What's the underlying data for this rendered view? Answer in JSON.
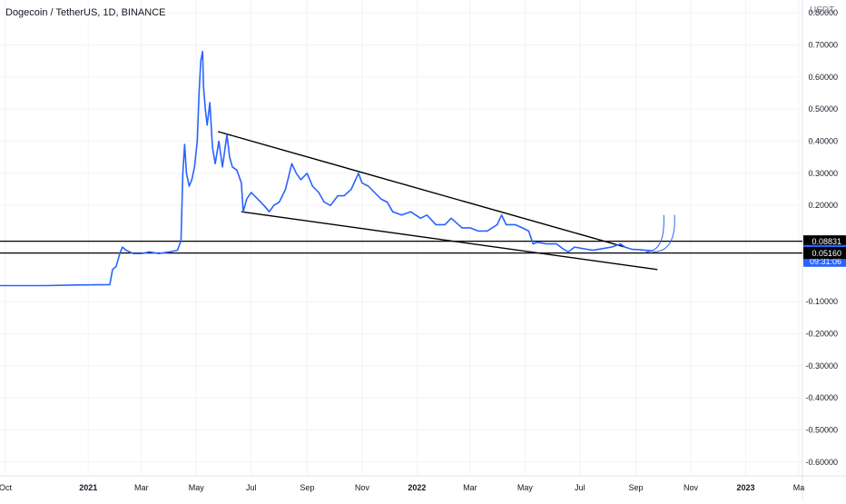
{
  "header": {
    "title": "Dogecoin / TetherUS, 1D, BINANCE",
    "currency": "USDT"
  },
  "colors": {
    "series": "#2962ff",
    "trendline": "#000000",
    "grid": "#f0f3fa",
    "axis_text": "#131722",
    "last_price_bg": "#2962ff"
  },
  "chart_data": {
    "type": "line",
    "symbol": "DOGEUSDT",
    "interval": "1D",
    "y_axis": {
      "ylim": [
        -0.64,
        0.84
      ],
      "ticks": [
        0.8,
        0.7,
        0.6,
        0.5,
        0.4,
        0.3,
        0.2,
        -0.1,
        -0.2,
        -0.3,
        -0.4,
        -0.5,
        -0.6
      ],
      "tick_labels": [
        "0.80000",
        "0.70000",
        "0.60000",
        "0.50000",
        "0.40000",
        "0.30000",
        "0.20000",
        "-0.10000",
        "-0.20000",
        "-0.30000",
        "-0.40000",
        "-0.50000",
        "-0.60000"
      ]
    },
    "x_axis": {
      "xlim": [
        "2020-09-25",
        "2023-03-05"
      ],
      "ticks": [
        {
          "date": "2020-10-01",
          "label": "Oct",
          "bold": false
        },
        {
          "date": "2021-01-01",
          "label": "2021",
          "bold": true
        },
        {
          "date": "2021-03-01",
          "label": "Mar",
          "bold": false
        },
        {
          "date": "2021-05-01",
          "label": "May",
          "bold": false
        },
        {
          "date": "2021-07-01",
          "label": "Jul",
          "bold": false
        },
        {
          "date": "2021-09-01",
          "label": "Sep",
          "bold": false
        },
        {
          "date": "2021-11-01",
          "label": "Nov",
          "bold": false
        },
        {
          "date": "2022-01-01",
          "label": "2022",
          "bold": true
        },
        {
          "date": "2022-03-01",
          "label": "Mar",
          "bold": false
        },
        {
          "date": "2022-05-01",
          "label": "May",
          "bold": false
        },
        {
          "date": "2022-07-01",
          "label": "Jul",
          "bold": false
        },
        {
          "date": "2022-09-01",
          "label": "Sep",
          "bold": false
        },
        {
          "date": "2022-11-01",
          "label": "Nov",
          "bold": false
        },
        {
          "date": "2023-01-01",
          "label": "2023",
          "bold": true
        },
        {
          "date": "2023-03-01",
          "label": "Ma",
          "bold": false
        }
      ]
    },
    "series": [
      {
        "points": [
          [
            "2020-09-25",
            -0.05
          ],
          [
            "2020-11-15",
            -0.05
          ],
          [
            "2020-12-20",
            -0.048
          ],
          [
            "2021-01-25",
            -0.047
          ],
          [
            "2021-01-28",
            0.0
          ],
          [
            "2021-02-01",
            0.01
          ],
          [
            "2021-02-05",
            0.05
          ],
          [
            "2021-02-08",
            0.07
          ],
          [
            "2021-02-12",
            0.06
          ],
          [
            "2021-02-20",
            0.05
          ],
          [
            "2021-03-01",
            0.05
          ],
          [
            "2021-03-10",
            0.055
          ],
          [
            "2021-03-20",
            0.05
          ],
          [
            "2021-04-01",
            0.055
          ],
          [
            "2021-04-10",
            0.06
          ],
          [
            "2021-04-14",
            0.09
          ],
          [
            "2021-04-16",
            0.3
          ],
          [
            "2021-04-18",
            0.39
          ],
          [
            "2021-04-20",
            0.3
          ],
          [
            "2021-04-23",
            0.26
          ],
          [
            "2021-04-26",
            0.28
          ],
          [
            "2021-04-29",
            0.32
          ],
          [
            "2021-05-02",
            0.4
          ],
          [
            "2021-05-04",
            0.55
          ],
          [
            "2021-05-06",
            0.65
          ],
          [
            "2021-05-08",
            0.68
          ],
          [
            "2021-05-09",
            0.57
          ],
          [
            "2021-05-11",
            0.5
          ],
          [
            "2021-05-13",
            0.45
          ],
          [
            "2021-05-16",
            0.52
          ],
          [
            "2021-05-19",
            0.38
          ],
          [
            "2021-05-22",
            0.33
          ],
          [
            "2021-05-26",
            0.4
          ],
          [
            "2021-05-30",
            0.32
          ],
          [
            "2021-06-02",
            0.38
          ],
          [
            "2021-06-04",
            0.42
          ],
          [
            "2021-06-07",
            0.35
          ],
          [
            "2021-06-10",
            0.32
          ],
          [
            "2021-06-15",
            0.31
          ],
          [
            "2021-06-20",
            0.27
          ],
          [
            "2021-06-22",
            0.18
          ],
          [
            "2021-06-26",
            0.22
          ],
          [
            "2021-07-01",
            0.24
          ],
          [
            "2021-07-08",
            0.22
          ],
          [
            "2021-07-15",
            0.2
          ],
          [
            "2021-07-21",
            0.18
          ],
          [
            "2021-07-26",
            0.2
          ],
          [
            "2021-08-01",
            0.21
          ],
          [
            "2021-08-08",
            0.25
          ],
          [
            "2021-08-15",
            0.33
          ],
          [
            "2021-08-20",
            0.3
          ],
          [
            "2021-08-25",
            0.28
          ],
          [
            "2021-09-01",
            0.3
          ],
          [
            "2021-09-07",
            0.26
          ],
          [
            "2021-09-14",
            0.24
          ],
          [
            "2021-09-20",
            0.21
          ],
          [
            "2021-09-27",
            0.2
          ],
          [
            "2021-10-05",
            0.23
          ],
          [
            "2021-10-12",
            0.23
          ],
          [
            "2021-10-20",
            0.25
          ],
          [
            "2021-10-28",
            0.3
          ],
          [
            "2021-11-01",
            0.27
          ],
          [
            "2021-11-08",
            0.26
          ],
          [
            "2021-11-15",
            0.24
          ],
          [
            "2021-11-22",
            0.22
          ],
          [
            "2021-11-29",
            0.21
          ],
          [
            "2021-12-05",
            0.18
          ],
          [
            "2021-12-15",
            0.17
          ],
          [
            "2021-12-25",
            0.18
          ],
          [
            "2022-01-05",
            0.16
          ],
          [
            "2022-01-12",
            0.17
          ],
          [
            "2022-01-22",
            0.14
          ],
          [
            "2022-02-01",
            0.14
          ],
          [
            "2022-02-08",
            0.16
          ],
          [
            "2022-02-20",
            0.13
          ],
          [
            "2022-03-01",
            0.13
          ],
          [
            "2022-03-10",
            0.12
          ],
          [
            "2022-03-20",
            0.12
          ],
          [
            "2022-03-31",
            0.14
          ],
          [
            "2022-04-05",
            0.17
          ],
          [
            "2022-04-10",
            0.14
          ],
          [
            "2022-04-20",
            0.14
          ],
          [
            "2022-04-28",
            0.13
          ],
          [
            "2022-05-05",
            0.12
          ],
          [
            "2022-05-10",
            0.08
          ],
          [
            "2022-05-15",
            0.085
          ],
          [
            "2022-05-25",
            0.08
          ],
          [
            "2022-06-05",
            0.08
          ],
          [
            "2022-06-12",
            0.065
          ],
          [
            "2022-06-18",
            0.055
          ],
          [
            "2022-06-25",
            0.07
          ],
          [
            "2022-07-05",
            0.065
          ],
          [
            "2022-07-15",
            0.06
          ],
          [
            "2022-07-25",
            0.065
          ],
          [
            "2022-08-05",
            0.07
          ],
          [
            "2022-08-15",
            0.08
          ],
          [
            "2022-08-20",
            0.07
          ],
          [
            "2022-08-28",
            0.063
          ],
          [
            "2022-09-05",
            0.062
          ],
          [
            "2022-09-12",
            0.06
          ],
          [
            "2022-09-20",
            0.058
          ]
        ]
      }
    ],
    "trendlines": [
      {
        "from": [
          "2021-05-25",
          0.43
        ],
        "to": [
          "2022-08-20",
          0.07
        ]
      },
      {
        "from": [
          "2021-06-20",
          0.18
        ],
        "to": [
          "2022-09-25",
          0.0
        ]
      }
    ],
    "horizontal_lines": [
      {
        "y": 0.08831,
        "color": "#000000"
      },
      {
        "y": 0.0516,
        "color": "#000000"
      }
    ],
    "projection_arcs": [
      {
        "from": [
          "2022-09-12",
          0.055
        ],
        "to": [
          "2022-10-02",
          0.17
        ]
      },
      {
        "from": [
          "2022-09-20",
          0.055
        ],
        "to": [
          "2022-10-14",
          0.17
        ]
      }
    ],
    "price_tags": [
      {
        "label": "0.08831",
        "y": 0.08831,
        "bg": "#000000",
        "fg": "#ffffff"
      },
      {
        "label": "0.05819",
        "sub_label": "09:31:06",
        "y": 0.05819,
        "bg": "#2962ff",
        "fg": "#ffffff"
      },
      {
        "label": "0.05160",
        "y": 0.0516,
        "bg": "#000000",
        "fg": "#ffffff"
      }
    ]
  }
}
